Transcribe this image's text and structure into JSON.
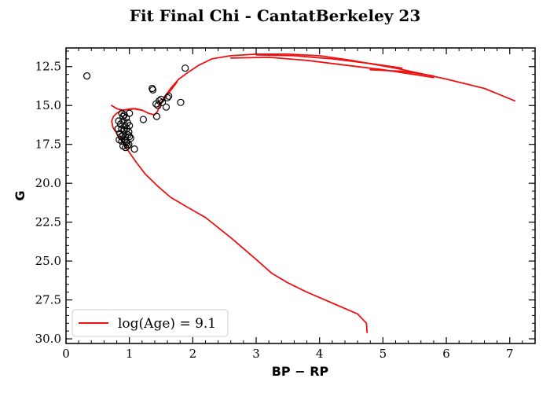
{
  "chart_data": {
    "type": "scatter",
    "title": "Fit Final Chi - CantatBerkeley 23",
    "xlabel": "BP − RP",
    "ylabel": "G",
    "xlim": [
      0,
      7.4
    ],
    "ylim": [
      30.3,
      11.3
    ],
    "y_inverted": true,
    "x_ticks": [
      0,
      1,
      2,
      3,
      4,
      5,
      6,
      7
    ],
    "x_tick_labels": [
      "0",
      "1",
      "2",
      "3",
      "4",
      "5",
      "6",
      "7"
    ],
    "y_ticks": [
      12.5,
      15.0,
      17.5,
      20.0,
      22.5,
      25.0,
      27.5,
      30.0
    ],
    "y_tick_labels": [
      "12.5",
      "15.0",
      "17.5",
      "20.0",
      "22.5",
      "25.0",
      "27.5",
      "30.0"
    ],
    "grid": false,
    "legend": {
      "placement": "lower-left",
      "entries": [
        "log(Age) = 9.1"
      ]
    },
    "colors": {
      "isochrone": "#ee1111",
      "points": "#000000"
    },
    "series": [
      {
        "kind": "scatter",
        "marker": "open-circle",
        "points": [
          [
            0.33,
            13.1
          ],
          [
            1.36,
            13.9
          ],
          [
            1.37,
            14.0
          ],
          [
            1.88,
            12.6
          ],
          [
            1.81,
            14.8
          ],
          [
            1.42,
            14.9
          ],
          [
            1.47,
            14.7
          ],
          [
            1.5,
            14.6
          ],
          [
            1.52,
            14.8
          ],
          [
            1.58,
            15.1
          ],
          [
            1.6,
            14.5
          ],
          [
            1.62,
            14.4
          ],
          [
            1.45,
            15.0
          ],
          [
            1.43,
            15.7
          ],
          [
            1.22,
            15.9
          ],
          [
            0.88,
            15.5
          ],
          [
            0.9,
            15.7
          ],
          [
            0.95,
            15.8
          ],
          [
            1.0,
            15.5
          ],
          [
            0.83,
            16.0
          ],
          [
            0.86,
            16.2
          ],
          [
            0.9,
            16.0
          ],
          [
            0.93,
            16.3
          ],
          [
            0.97,
            16.1
          ],
          [
            1.0,
            16.3
          ],
          [
            0.88,
            16.5
          ],
          [
            0.92,
            16.6
          ],
          [
            0.96,
            16.5
          ],
          [
            0.99,
            16.7
          ],
          [
            0.85,
            16.8
          ],
          [
            0.9,
            16.9
          ],
          [
            0.94,
            17.0
          ],
          [
            0.98,
            16.9
          ],
          [
            1.02,
            17.1
          ],
          [
            0.84,
            17.2
          ],
          [
            0.88,
            17.3
          ],
          [
            0.92,
            17.2
          ],
          [
            0.96,
            17.4
          ],
          [
            0.99,
            17.5
          ],
          [
            0.9,
            17.6
          ],
          [
            0.94,
            17.7
          ],
          [
            0.97,
            17.6
          ],
          [
            1.08,
            17.8
          ],
          [
            0.87,
            17.0
          ],
          [
            0.82,
            16.5
          ],
          [
            0.95,
            17.3
          ],
          [
            1.0,
            17.0
          ],
          [
            0.92,
            15.6
          ]
        ]
      },
      {
        "kind": "line",
        "name": "log(Age) = 9.1",
        "points": [
          [
            4.75,
            29.6
          ],
          [
            4.74,
            29.0
          ],
          [
            4.6,
            28.4
          ],
          [
            4.2,
            27.7
          ],
          [
            3.8,
            27.0
          ],
          [
            3.5,
            26.4
          ],
          [
            3.25,
            25.8
          ],
          [
            3.0,
            24.9
          ],
          [
            2.6,
            23.5
          ],
          [
            2.2,
            22.2
          ],
          [
            1.9,
            21.5
          ],
          [
            1.65,
            20.9
          ],
          [
            1.45,
            20.2
          ],
          [
            1.25,
            19.4
          ],
          [
            1.1,
            18.6
          ],
          [
            0.98,
            17.9
          ],
          [
            0.88,
            17.3
          ],
          [
            0.8,
            16.8
          ],
          [
            0.74,
            16.4
          ],
          [
            0.72,
            16.0
          ],
          [
            0.75,
            15.7
          ],
          [
            0.8,
            15.5
          ],
          [
            0.9,
            15.3
          ],
          [
            1.05,
            15.2
          ],
          [
            1.2,
            15.3
          ],
          [
            1.3,
            15.5
          ],
          [
            1.4,
            15.6
          ],
          [
            1.44,
            15.4
          ],
          [
            1.48,
            15.0
          ],
          [
            1.55,
            14.5
          ],
          [
            1.65,
            13.9
          ],
          [
            1.78,
            13.3
          ],
          [
            1.95,
            12.8
          ],
          [
            2.1,
            12.4
          ],
          [
            2.3,
            12.0
          ],
          [
            2.6,
            11.8
          ],
          [
            3.0,
            11.7
          ],
          [
            3.5,
            11.7
          ],
          [
            4.0,
            11.8
          ],
          [
            4.5,
            12.1
          ],
          [
            5.2,
            12.6
          ],
          [
            6.0,
            13.3
          ],
          [
            6.6,
            13.9
          ],
          [
            7.08,
            14.7
          ]
        ]
      },
      {
        "kind": "line",
        "name": "",
        "points": [
          [
            0.72,
            15.0
          ],
          [
            0.8,
            15.2
          ],
          [
            0.9,
            15.3
          ],
          [
            1.0,
            15.25
          ],
          [
            1.1,
            15.2
          ],
          [
            1.2,
            15.3
          ]
        ]
      },
      {
        "kind": "line",
        "name": "",
        "points": [
          [
            2.6,
            11.95
          ],
          [
            3.2,
            11.9
          ],
          [
            3.8,
            12.1
          ],
          [
            4.4,
            12.4
          ],
          [
            5.0,
            12.7
          ],
          [
            5.8,
            13.2
          ]
        ]
      },
      {
        "kind": "line",
        "name": "",
        "points": [
          [
            3.0,
            11.75
          ],
          [
            3.6,
            11.8
          ],
          [
            4.2,
            12.0
          ],
          [
            4.8,
            12.3
          ],
          [
            5.3,
            12.6
          ]
        ]
      },
      {
        "kind": "line",
        "name": "",
        "points": [
          [
            4.8,
            12.7
          ],
          [
            5.3,
            12.8
          ],
          [
            5.8,
            13.1
          ]
        ]
      },
      {
        "kind": "line",
        "name": "",
        "points": [
          [
            1.5,
            14.9
          ],
          [
            1.6,
            14.3
          ],
          [
            1.75,
            13.5
          ]
        ]
      }
    ]
  }
}
